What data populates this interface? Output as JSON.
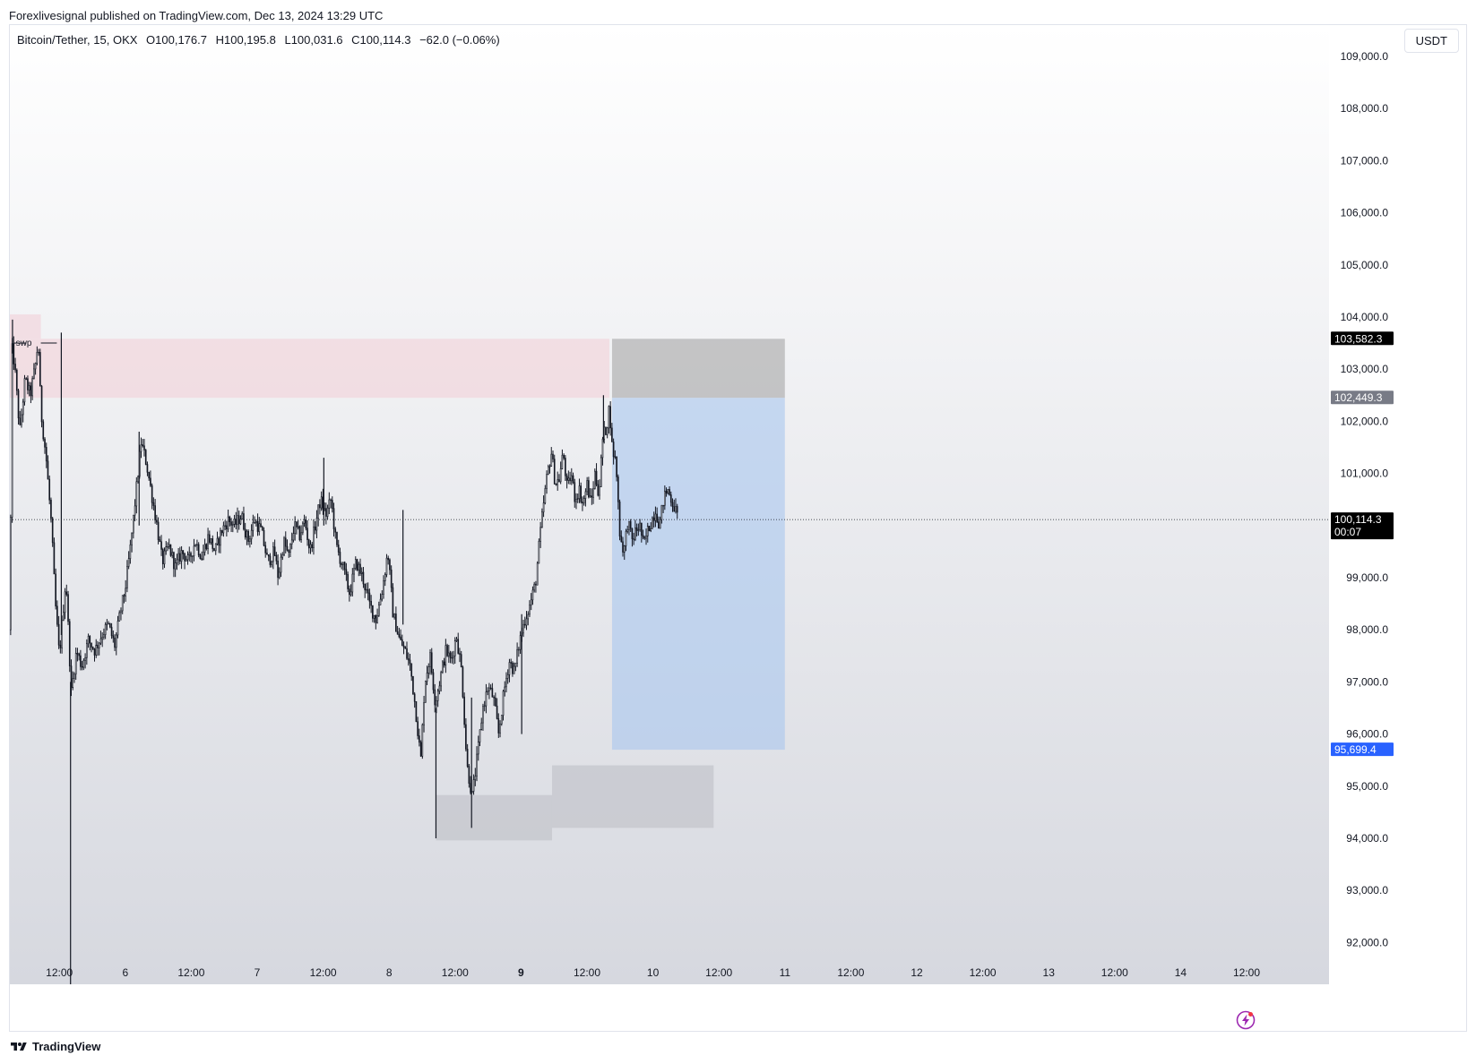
{
  "publish_line": "Forexlivesignal published on TradingView.com, Dec 13, 2024 13:29 UTC",
  "legend": {
    "symbol": "Bitcoin/Tether, 15, OKX",
    "open": "O100,176.7",
    "high": "H100,195.8",
    "low": "L100,031.6",
    "close": "C100,114.3",
    "change": "−62.0 (−0.06%)"
  },
  "currency": "USDT",
  "footer": {
    "brand": "TradingView"
  },
  "colors": {
    "candle": "#131722",
    "supply_zone": "#f2d7dd",
    "stop_zone": "#9e9e9e",
    "target_zone": "#a9c6ee",
    "demand_zone": "#c4c6cc",
    "last_price_tag": "#000000",
    "target_tag": "#2962ff",
    "grey_tag": "#787b86"
  },
  "chart_data": {
    "type": "candlestick",
    "title": "",
    "y_axis": {
      "range": [
        91200,
        109600
      ],
      "ticks": [
        "109,000.0",
        "108,000.0",
        "107,000.0",
        "106,000.0",
        "105,000.0",
        "104,000.0",
        "103,000.0",
        "102,000.0",
        "101,000.0",
        "99,000.0",
        "98,000.0",
        "97,000.0",
        "96,000.0",
        "95,000.0",
        "94,000.0",
        "93,000.0",
        "92,000.0"
      ],
      "tick_values": [
        109000,
        108000,
        107000,
        106000,
        105000,
        104000,
        103000,
        102000,
        101000,
        99000,
        98000,
        97000,
        96000,
        95000,
        94000,
        93000,
        92000
      ]
    },
    "x_axis": {
      "range_days": [
        4.625,
        14.625
      ],
      "ticks": [
        {
          "label": "12:00",
          "day": 5.0,
          "bold": false
        },
        {
          "label": "6",
          "day": 5.5,
          "bold": false
        },
        {
          "label": "12:00",
          "day": 6.0,
          "bold": false
        },
        {
          "label": "7",
          "day": 6.5,
          "bold": false
        },
        {
          "label": "12:00",
          "day": 7.0,
          "bold": false
        },
        {
          "label": "8",
          "day": 7.5,
          "bold": false
        },
        {
          "label": "12:00",
          "day": 8.0,
          "bold": false
        },
        {
          "label": "9",
          "day": 8.5,
          "bold": true
        },
        {
          "label": "12:00",
          "day": 9.0,
          "bold": false
        },
        {
          "label": "10",
          "day": 9.5,
          "bold": false
        },
        {
          "label": "12:00",
          "day": 10.0,
          "bold": false
        },
        {
          "label": "11",
          "day": 10.5,
          "bold": false
        },
        {
          "label": "12:00",
          "day": 11.0,
          "bold": false
        },
        {
          "label": "12",
          "day": 11.5,
          "bold": false
        },
        {
          "label": "12:00",
          "day": 12.0,
          "bold": false
        },
        {
          "label": "13",
          "day": 12.5,
          "bold": false
        },
        {
          "label": "12:00",
          "day": 13.0,
          "bold": false
        },
        {
          "label": "14",
          "day": 13.5,
          "bold": false
        },
        {
          "label": "12:00",
          "day": 14.0,
          "bold": false
        }
      ]
    },
    "price_path": [
      [
        4.625,
        98000
      ],
      [
        4.64,
        103400
      ],
      [
        4.66,
        103100
      ],
      [
        4.7,
        101800
      ],
      [
        4.74,
        102800
      ],
      [
        4.78,
        102500
      ],
      [
        4.82,
        103100
      ],
      [
        4.84,
        103550
      ],
      [
        4.86,
        102200
      ],
      [
        4.9,
        101300
      ],
      [
        4.94,
        100000
      ],
      [
        4.97,
        98500
      ],
      [
        5.0,
        97500
      ],
      [
        5.05,
        99000
      ],
      [
        5.09,
        96800
      ],
      [
        5.13,
        97600
      ],
      [
        5.17,
        97300
      ],
      [
        5.22,
        97800
      ],
      [
        5.27,
        97600
      ],
      [
        5.32,
        97900
      ],
      [
        5.37,
        98100
      ],
      [
        5.42,
        97700
      ],
      [
        5.46,
        98300
      ],
      [
        5.5,
        98800
      ],
      [
        5.54,
        99600
      ],
      [
        5.58,
        100600
      ],
      [
        5.62,
        101600
      ],
      [
        5.66,
        101200
      ],
      [
        5.7,
        100600
      ],
      [
        5.74,
        100000
      ],
      [
        5.78,
        99300
      ],
      [
        5.83,
        99600
      ],
      [
        5.88,
        99200
      ],
      [
        5.93,
        99500
      ],
      [
        5.98,
        99300
      ],
      [
        6.03,
        99700
      ],
      [
        6.08,
        99400
      ],
      [
        6.13,
        99800
      ],
      [
        6.18,
        99500
      ],
      [
        6.23,
        99900
      ],
      [
        6.28,
        100100
      ],
      [
        6.33,
        100000
      ],
      [
        6.38,
        100200
      ],
      [
        6.43,
        99700
      ],
      [
        6.48,
        100100
      ],
      [
        6.53,
        99900
      ],
      [
        6.58,
        99300
      ],
      [
        6.63,
        99500
      ],
      [
        6.66,
        99000
      ],
      [
        6.7,
        99700
      ],
      [
        6.74,
        99400
      ],
      [
        6.78,
        100000
      ],
      [
        6.82,
        99800
      ],
      [
        6.86,
        100100
      ],
      [
        6.9,
        99500
      ],
      [
        6.94,
        100000
      ],
      [
        6.98,
        100500
      ],
      [
        7.02,
        100200
      ],
      [
        7.06,
        100500
      ],
      [
        7.1,
        99600
      ],
      [
        7.15,
        99200
      ],
      [
        7.2,
        98700
      ],
      [
        7.25,
        99300
      ],
      [
        7.3,
        99000
      ],
      [
        7.35,
        98500
      ],
      [
        7.4,
        98200
      ],
      [
        7.45,
        98800
      ],
      [
        7.49,
        99500
      ],
      [
        7.53,
        98300
      ],
      [
        7.58,
        97800
      ],
      [
        7.62,
        97600
      ],
      [
        7.66,
        97300
      ],
      [
        7.7,
        96500
      ],
      [
        7.74,
        95500
      ],
      [
        7.77,
        97000
      ],
      [
        7.81,
        97500
      ],
      [
        7.85,
        96600
      ],
      [
        7.89,
        97100
      ],
      [
        7.93,
        97600
      ],
      [
        7.97,
        97400
      ],
      [
        8.01,
        97900
      ],
      [
        8.05,
        97200
      ],
      [
        8.09,
        95400
      ],
      [
        8.13,
        94800
      ],
      [
        8.17,
        95600
      ],
      [
        8.21,
        96500
      ],
      [
        8.25,
        96900
      ],
      [
        8.29,
        96700
      ],
      [
        8.33,
        96000
      ],
      [
        8.37,
        96800
      ],
      [
        8.41,
        97400
      ],
      [
        8.45,
        97200
      ],
      [
        8.49,
        97800
      ],
      [
        8.53,
        98200
      ],
      [
        8.57,
        98500
      ],
      [
        8.61,
        98900
      ],
      [
        8.64,
        99700
      ],
      [
        8.67,
        100400
      ],
      [
        8.7,
        101000
      ],
      [
        8.73,
        101400
      ],
      [
        8.76,
        100800
      ],
      [
        8.79,
        100900
      ],
      [
        8.82,
        101400
      ],
      [
        8.85,
        100700
      ],
      [
        8.88,
        101000
      ],
      [
        8.91,
        100500
      ],
      [
        8.94,
        100700
      ],
      [
        8.97,
        100400
      ],
      [
        9.0,
        100800
      ],
      [
        9.03,
        100400
      ],
      [
        9.06,
        101000
      ],
      [
        9.09,
        100600
      ],
      [
        9.12,
        101700
      ],
      [
        9.15,
        101900
      ],
      [
        9.17,
        102300
      ],
      [
        9.19,
        101500
      ],
      [
        9.22,
        101200
      ],
      [
        9.25,
        99800
      ],
      [
        9.28,
        99500
      ],
      [
        9.31,
        100100
      ],
      [
        9.34,
        99700
      ],
      [
        9.37,
        99900
      ],
      [
        9.4,
        100000
      ],
      [
        9.43,
        99600
      ],
      [
        9.46,
        99900
      ],
      [
        9.49,
        100100
      ],
      [
        9.52,
        100300
      ],
      [
        9.55,
        100000
      ],
      [
        9.58,
        100500
      ],
      [
        9.61,
        100700
      ],
      [
        9.64,
        100500
      ],
      [
        9.67,
        100300
      ],
      [
        9.69,
        100114
      ]
    ],
    "candle_count": 430,
    "extremes": [
      {
        "day": 4.645,
        "low": 103300,
        "high": 103950
      },
      {
        "day": 5.015,
        "low": 97900,
        "high": 103700
      },
      {
        "day": 5.085,
        "low": 91200,
        "high": 97000
      },
      {
        "day": 5.605,
        "low": 100000,
        "high": 101800
      },
      {
        "day": 7.005,
        "low": 100000,
        "high": 101300
      },
      {
        "day": 7.605,
        "low": 98100,
        "high": 100300
      },
      {
        "day": 7.855,
        "low": 94000,
        "high": 96500
      },
      {
        "day": 8.125,
        "low": 94200,
        "high": 96700
      },
      {
        "day": 8.505,
        "low": 96000,
        "high": 98300
      },
      {
        "day": 9.125,
        "low": 101600,
        "high": 102500
      }
    ],
    "zones": [
      {
        "name": "supply-zone",
        "day_start": 4.625,
        "day_end": 9.17,
        "price_low": 102449.3,
        "price_high": 103582.3,
        "color_key": "supply_zone"
      },
      {
        "name": "supply-zone-top",
        "day_start": 4.625,
        "day_end": 4.86,
        "price_low": 103582.3,
        "price_high": 104050,
        "color_key": "supply_zone"
      },
      {
        "name": "stop-loss-zone",
        "day_start": 9.19,
        "day_end": 10.5,
        "price_low": 102449.3,
        "price_high": 103582.3,
        "color_key": "stop_zone"
      },
      {
        "name": "take-profit-zone",
        "day_start": 9.19,
        "day_end": 10.5,
        "price_low": 95699.4,
        "price_high": 102449.3,
        "color_key": "target_zone"
      },
      {
        "name": "demand-zone-left",
        "day_start": 7.855,
        "day_end": 8.735,
        "price_low": 93960,
        "price_high": 94830,
        "color_key": "demand_zone"
      },
      {
        "name": "demand-zone-right",
        "day_start": 8.735,
        "day_end": 9.96,
        "price_low": 94200,
        "price_high": 95400,
        "color_key": "demand_zone"
      }
    ],
    "annotations": [
      {
        "name": "swp-label",
        "text": "swp",
        "day_start": 4.655,
        "day_end": 4.86,
        "price": 103500
      }
    ],
    "price_tags": [
      {
        "name": "stop-price-tag",
        "text": "103,582.3",
        "price": 103582.3,
        "color_key": "last_price_tag"
      },
      {
        "name": "entry-price-tag",
        "text": "102,449.3",
        "price": 102449.3,
        "color_key": "grey_tag"
      },
      {
        "name": "last-price-tag",
        "text": "100,114.3",
        "sub": "00:07",
        "price": 100114.3,
        "color_key": "last_price_tag"
      },
      {
        "name": "target-price-tag",
        "text": "95,699.4",
        "price": 95699.4,
        "color_key": "target_tag"
      }
    ],
    "last_price_line": 100114.3
  }
}
